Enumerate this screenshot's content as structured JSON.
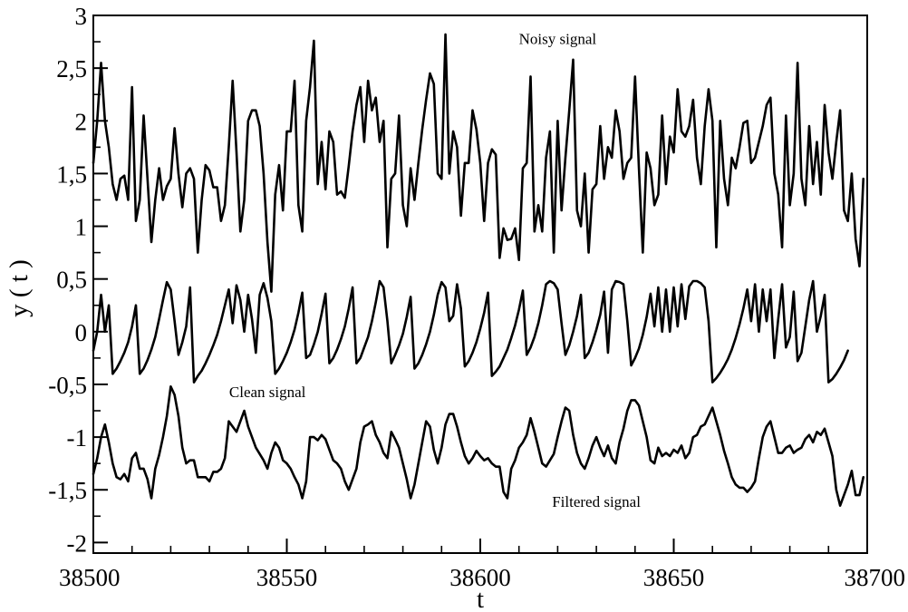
{
  "chart_data": {
    "type": "line",
    "title": "",
    "xlabel": "t",
    "ylabel": "y ( t )",
    "xlim": [
      38500,
      38700
    ],
    "ylim": [
      -2.1,
      3
    ],
    "grid": false,
    "x_ticks": [
      38500,
      38550,
      38600,
      38650,
      38700
    ],
    "x_tick_labels": [
      "38500",
      "38550",
      "38600",
      "38650",
      "38700"
    ],
    "y_ticks": [
      -2,
      -1.5,
      -1,
      -0.5,
      0,
      0.5,
      1,
      1.5,
      2,
      2.5,
      3
    ],
    "y_tick_labels": [
      "-2",
      "-1,5",
      "-1",
      "-0,5",
      "0",
      "0,5",
      "1",
      "1,5",
      "2",
      "2,5",
      "3"
    ],
    "annotations": [
      {
        "text": "Noisy signal",
        "x": 38620,
        "y": 2.73
      },
      {
        "text": "Clean signal",
        "x": 38545,
        "y": -0.62
      },
      {
        "text": "Filtered signal",
        "x": 38630,
        "y": -1.66
      }
    ],
    "x_start": 38500,
    "x_step": 1,
    "series": [
      {
        "values": [
          1.6,
          2.0,
          2.55,
          2.0,
          1.75,
          1.4,
          1.25,
          1.45,
          1.48,
          1.25,
          2.32,
          1.05,
          1.25,
          2.05,
          1.45,
          0.85,
          1.25,
          1.55,
          1.25,
          1.38,
          1.45,
          1.93,
          1.5,
          1.18,
          1.5,
          1.55,
          1.45,
          0.75,
          1.25,
          1.58,
          1.53,
          1.37,
          1.37,
          1.05,
          1.2,
          1.75,
          2.38,
          1.7,
          0.95,
          1.25,
          2.0,
          2.1,
          2.1,
          1.95,
          1.5,
          0.85,
          0.38,
          1.3,
          1.58,
          1.15,
          1.9,
          1.9,
          2.38,
          1.2,
          0.95,
          2.0,
          2.32,
          2.76,
          1.4,
          1.8,
          1.35,
          1.9,
          1.8,
          1.3,
          1.33,
          1.27,
          1.57,
          1.9,
          2.15,
          2.32,
          1.8,
          2.38,
          2.1,
          2.22,
          1.8,
          2.0,
          0.8,
          1.45,
          1.5,
          2.05,
          1.2,
          1.0,
          1.55,
          1.25,
          1.6,
          1.92,
          2.2,
          2.45,
          2.35,
          1.5,
          1.45,
          2.82,
          1.5,
          1.9,
          1.75,
          1.1,
          1.6,
          1.6,
          2.1,
          1.92,
          1.6,
          1.05,
          1.6,
          1.73,
          1.68,
          0.7,
          0.98,
          0.87,
          0.88,
          0.98,
          0.68,
          1.55,
          1.6,
          2.42,
          0.95,
          1.2,
          0.95,
          1.65,
          1.9,
          0.75,
          2.0,
          1.15,
          1.65,
          2.1,
          2.58,
          1.15,
          1.0,
          1.5,
          0.75,
          1.35,
          1.4,
          1.95,
          1.45,
          1.75,
          1.65,
          2.1,
          1.9,
          1.45,
          1.6,
          1.65,
          2.42,
          1.55,
          0.75,
          1.7,
          1.55,
          1.2,
          1.3,
          2.05,
          1.4,
          1.85,
          1.7,
          2.3,
          1.9,
          1.85,
          1.95,
          2.2,
          1.65,
          1.4,
          1.95,
          2.3,
          2.0,
          0.8,
          2.0,
          1.45,
          1.2,
          1.65,
          1.55,
          1.75,
          1.98,
          2.0,
          1.6,
          1.65,
          1.8,
          1.95,
          2.15,
          2.22,
          1.5,
          1.3,
          0.8,
          2.05,
          1.2,
          1.5,
          2.55,
          1.45,
          1.2,
          1.95,
          1.4,
          1.8,
          1.3,
          2.15,
          1.7,
          1.45,
          1.8,
          2.1,
          1.15,
          1.05,
          1.5,
          0.88,
          0.62,
          1.45
        ],
        "color": "#000000"
      },
      {
        "values": [
          -0.18,
          0.0,
          0.35,
          0.0,
          0.25,
          -0.4,
          -0.35,
          -0.28,
          -0.2,
          -0.1,
          0.05,
          0.25,
          -0.4,
          -0.35,
          -0.27,
          -0.17,
          -0.05,
          0.12,
          0.3,
          0.47,
          0.4,
          0.1,
          -0.22,
          -0.1,
          0.05,
          0.42,
          -0.48,
          -0.42,
          -0.37,
          -0.3,
          -0.22,
          -0.13,
          -0.03,
          0.1,
          0.25,
          0.4,
          0.08,
          0.44,
          0.3,
          0.0,
          0.35,
          0.12,
          -0.2,
          0.35,
          0.46,
          0.32,
          0.1,
          -0.4,
          -0.35,
          -0.28,
          -0.2,
          -0.1,
          0.02,
          0.18,
          0.37,
          -0.25,
          -0.22,
          -0.12,
          0.0,
          0.17,
          0.36,
          -0.3,
          -0.25,
          -0.17,
          -0.07,
          0.05,
          0.22,
          0.42,
          -0.3,
          -0.25,
          -0.15,
          -0.05,
          0.1,
          0.28,
          0.48,
          0.42,
          0.1,
          -0.3,
          -0.22,
          -0.13,
          -0.02,
          0.14,
          0.33,
          -0.35,
          -0.3,
          -0.22,
          -0.12,
          0.0,
          0.16,
          0.35,
          0.47,
          0.42,
          0.1,
          0.15,
          0.45,
          0.22,
          -0.33,
          -0.28,
          -0.2,
          -0.1,
          0.03,
          0.18,
          0.37,
          -0.42,
          -0.38,
          -0.33,
          -0.25,
          -0.17,
          -0.06,
          0.06,
          0.21,
          0.39,
          -0.22,
          -0.15,
          -0.05,
          0.08,
          0.25,
          0.45,
          0.48,
          0.46,
          0.4,
          0.08,
          -0.22,
          -0.13,
          0.0,
          0.15,
          0.35,
          -0.25,
          -0.2,
          -0.1,
          0.02,
          0.16,
          0.38,
          -0.2,
          0.4,
          0.48,
          0.47,
          0.45,
          0.1,
          -0.32,
          -0.25,
          -0.16,
          -0.03,
          0.14,
          0.36,
          0.05,
          0.42,
          0.0,
          0.4,
          0.0,
          0.42,
          0.05,
          0.45,
          0.12,
          0.43,
          0.48,
          0.48,
          0.46,
          0.42,
          0.1,
          -0.48,
          -0.44,
          -0.39,
          -0.33,
          -0.26,
          -0.17,
          -0.06,
          0.07,
          0.22,
          0.4,
          0.1,
          0.45,
          0.0,
          0.4,
          0.1,
          0.4,
          -0.25,
          0.12,
          0.45,
          -0.15,
          -0.05,
          0.38,
          -0.28,
          -0.2,
          0.05,
          0.3,
          0.48,
          0.0,
          0.15,
          0.35,
          -0.48,
          -0.45,
          -0.4,
          -0.34,
          -0.27,
          -0.18
        ],
        "color": "#000000"
      },
      {
        "values": [
          -1.35,
          -1.2,
          -1.0,
          -0.88,
          -1.05,
          -1.25,
          -1.38,
          -1.4,
          -1.35,
          -1.42,
          -1.2,
          -1.15,
          -1.3,
          -1.3,
          -1.4,
          -1.58,
          -1.3,
          -1.17,
          -1.0,
          -0.8,
          -0.52,
          -0.6,
          -0.8,
          -1.1,
          -1.25,
          -1.22,
          -1.22,
          -1.38,
          -1.38,
          -1.38,
          -1.42,
          -1.33,
          -1.33,
          -1.3,
          -1.2,
          -0.85,
          -0.9,
          -0.95,
          -0.85,
          -0.75,
          -0.9,
          -1.0,
          -1.1,
          -1.16,
          -1.22,
          -1.3,
          -1.15,
          -1.05,
          -1.1,
          -1.22,
          -1.25,
          -1.3,
          -1.38,
          -1.45,
          -1.58,
          -1.42,
          -1.0,
          -1.0,
          -1.03,
          -0.98,
          -1.02,
          -1.12,
          -1.22,
          -1.25,
          -1.3,
          -1.42,
          -1.5,
          -1.4,
          -1.3,
          -1.05,
          -0.9,
          -0.88,
          -0.85,
          -0.98,
          -1.05,
          -1.15,
          -1.2,
          -0.95,
          -1.02,
          -1.1,
          -1.25,
          -1.4,
          -1.58,
          -1.45,
          -1.25,
          -1.05,
          -0.85,
          -0.9,
          -1.12,
          -1.25,
          -1.1,
          -0.88,
          -0.78,
          -0.78,
          -0.9,
          -1.05,
          -1.18,
          -1.25,
          -1.2,
          -1.13,
          -1.18,
          -1.22,
          -1.2,
          -1.25,
          -1.28,
          -1.28,
          -1.52,
          -1.58,
          -1.3,
          -1.22,
          -1.1,
          -1.05,
          -0.98,
          -0.82,
          -0.95,
          -1.1,
          -1.25,
          -1.28,
          -1.22,
          -1.16,
          -1.0,
          -0.85,
          -0.72,
          -0.75,
          -0.98,
          -1.15,
          -1.25,
          -1.3,
          -1.2,
          -1.08,
          -1.0,
          -1.1,
          -1.18,
          -1.08,
          -1.2,
          -1.25,
          -1.05,
          -0.92,
          -0.75,
          -0.65,
          -0.65,
          -0.7,
          -0.85,
          -1.0,
          -1.22,
          -1.25,
          -1.1,
          -1.18,
          -1.15,
          -1.18,
          -1.12,
          -1.15,
          -1.08,
          -1.2,
          -1.15,
          -1.0,
          -0.98,
          -0.9,
          -0.88,
          -0.8,
          -0.72,
          -0.85,
          -0.98,
          -1.13,
          -1.25,
          -1.38,
          -1.45,
          -1.48,
          -1.48,
          -1.52,
          -1.48,
          -1.42,
          -1.2,
          -1.0,
          -0.9,
          -0.85,
          -1.0,
          -1.15,
          -1.15,
          -1.1,
          -1.08,
          -1.15,
          -1.12,
          -1.1,
          -1.02,
          -0.98,
          -1.05,
          -0.95,
          -0.98,
          -0.92,
          -1.05,
          -1.18,
          -1.5,
          -1.65,
          -1.55,
          -1.45,
          -1.32,
          -1.55,
          -1.55,
          -1.38
        ],
        "color": "#000000"
      }
    ]
  }
}
